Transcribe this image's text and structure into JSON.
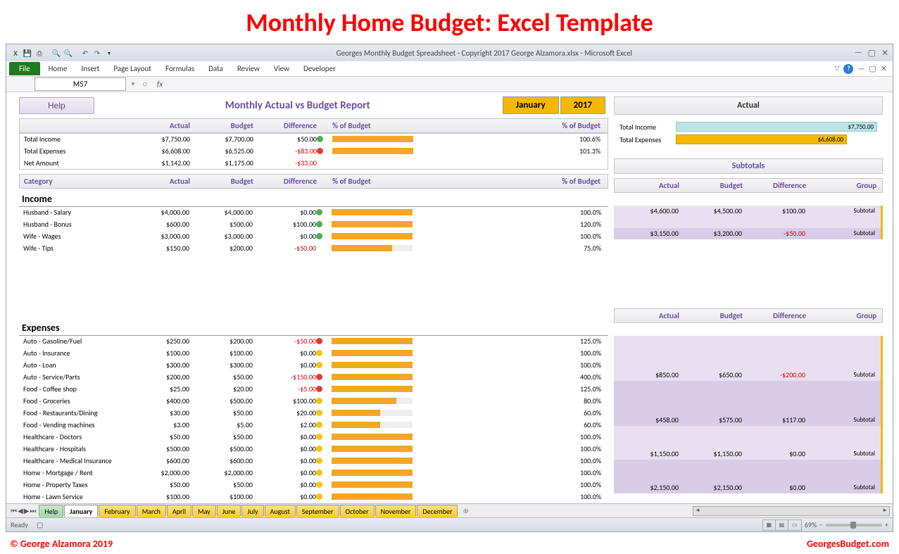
{
  "banner": "Monthly Home Budget: Excel Template",
  "window": {
    "title": "Georges Monthly Budget Spreadsheet - Copyright 2017 George Alzamora.xlsx  -  Microsoft Excel",
    "file_tab": "File",
    "tabs": [
      "Home",
      "Insert",
      "Page Layout",
      "Formulas",
      "Data",
      "Review",
      "View",
      "Developer"
    ],
    "namebox": "M57",
    "fx": "fx",
    "ready": "Ready",
    "zoom": "69%"
  },
  "report": {
    "help_btn": "Help",
    "title": "Monthly Actual vs Budget Report",
    "month": "January",
    "year": "2017",
    "headers": {
      "cat": "",
      "actual": "Actual",
      "budget": "Budget",
      "diff": "Difference",
      "pct1": "% of Budget",
      "pct2": "% of Budget"
    },
    "totals": [
      {
        "cat": "Total Income",
        "act": "$7,750.00",
        "bud": "$7,700.00",
        "diff": "$50.00",
        "neg": false,
        "ind": "g",
        "bar": 100,
        "pct": "100.6%"
      },
      {
        "cat": "Total Expenses",
        "act": "$6,608.00",
        "bud": "$6,525.00",
        "diff": "-$83.00",
        "neg": true,
        "ind": "r",
        "bar": 100,
        "pct": "101.3%"
      },
      {
        "cat": "Net Amount",
        "act": "$1,142.00",
        "bud": "$1,175.00",
        "diff": "-$33.00",
        "neg": true,
        "ind": "",
        "bar": 0,
        "pct": ""
      }
    ],
    "cat_header": "Category",
    "income_label": "Income",
    "income": [
      {
        "cat": "Husband - Salary",
        "act": "$4,000.00",
        "bud": "$4,000.00",
        "diff": "$0.00",
        "neg": false,
        "ind": "g",
        "bar": 100,
        "pct": "100.0%"
      },
      {
        "cat": "Husband - Bonus",
        "act": "$600.00",
        "bud": "$500.00",
        "diff": "$100.00",
        "neg": false,
        "ind": "g",
        "bar": 100,
        "pct": "120.0%"
      },
      {
        "cat": "Wife - Wages",
        "act": "$3,000.00",
        "bud": "$3,000.00",
        "diff": "$0.00",
        "neg": false,
        "ind": "g",
        "bar": 100,
        "pct": "100.0%"
      },
      {
        "cat": "Wife - Tips",
        "act": "$150.00",
        "bud": "$200.00",
        "diff": "-$50.00",
        "neg": true,
        "ind": "",
        "bar": 75,
        "pct": "75.0%"
      }
    ],
    "expenses_label": "Expenses",
    "expenses": [
      {
        "cat": "Auto - Gasoline/Fuel",
        "act": "$250.00",
        "bud": "$200.00",
        "diff": "-$50.00",
        "neg": true,
        "ind": "r",
        "bar": 100,
        "pct": "125.0%"
      },
      {
        "cat": "Auto - Insurance",
        "act": "$100.00",
        "bud": "$100.00",
        "diff": "$0.00",
        "neg": false,
        "ind": "y",
        "bar": 100,
        "pct": "100.0%"
      },
      {
        "cat": "Auto - Loan",
        "act": "$300.00",
        "bud": "$300.00",
        "diff": "$0.00",
        "neg": false,
        "ind": "y",
        "bar": 100,
        "pct": "100.0%"
      },
      {
        "cat": "Auto - Service/Parts",
        "act": "$200.00",
        "bud": "$50.00",
        "diff": "-$150.00",
        "neg": true,
        "ind": "r",
        "bar": 100,
        "pct": "400.0%"
      },
      {
        "cat": "Food - Coffee shop",
        "act": "$25.00",
        "bud": "$20.00",
        "diff": "-$5.00",
        "neg": true,
        "ind": "r",
        "bar": 100,
        "pct": "125.0%"
      },
      {
        "cat": "Food - Groceries",
        "act": "$400.00",
        "bud": "$500.00",
        "diff": "$100.00",
        "neg": false,
        "ind": "y",
        "bar": 80,
        "pct": "80.0%"
      },
      {
        "cat": "Food - Restaurants/Dining",
        "act": "$30.00",
        "bud": "$50.00",
        "diff": "$20.00",
        "neg": false,
        "ind": "y",
        "bar": 60,
        "pct": "60.0%"
      },
      {
        "cat": "Food - Vending machines",
        "act": "$3.00",
        "bud": "$5.00",
        "diff": "$2.00",
        "neg": false,
        "ind": "y",
        "bar": 60,
        "pct": "60.0%"
      },
      {
        "cat": "Healthcare - Doctors",
        "act": "$50.00",
        "bud": "$50.00",
        "diff": "$0.00",
        "neg": false,
        "ind": "y",
        "bar": 100,
        "pct": "100.0%"
      },
      {
        "cat": "Healthcare - Hospitals",
        "act": "$500.00",
        "bud": "$500.00",
        "diff": "$0.00",
        "neg": false,
        "ind": "y",
        "bar": 100,
        "pct": "100.0%"
      },
      {
        "cat": "Healthcare - Medical Insurance",
        "act": "$600.00",
        "bud": "$600.00",
        "diff": "$0.00",
        "neg": false,
        "ind": "y",
        "bar": 100,
        "pct": "100.0%"
      },
      {
        "cat": "Home - Mortgage / Rent",
        "act": "$2,000.00",
        "bud": "$2,000.00",
        "diff": "$0.00",
        "neg": false,
        "ind": "y",
        "bar": 100,
        "pct": "100.0%"
      },
      {
        "cat": "Home - Property Taxes",
        "act": "$50.00",
        "bud": "$50.00",
        "diff": "$0.00",
        "neg": false,
        "ind": "y",
        "bar": 100,
        "pct": "100.0%"
      },
      {
        "cat": "Home - Lawn Service",
        "act": "$100.00",
        "bud": "$100.00",
        "diff": "$0.00",
        "neg": false,
        "ind": "y",
        "bar": 100,
        "pct": "100.0%"
      }
    ]
  },
  "side": {
    "actual_hdr": "Actual",
    "ti_label": "Total Income",
    "ti_val": "$7,750.00",
    "te_label": "Total Expenses",
    "te_val": "$6,608.00",
    "te_bar_pct": 85,
    "sub_title": "Subtotals",
    "sub_headers": {
      "actual": "Actual",
      "budget": "Budget",
      "diff": "Difference",
      "group": "Group"
    },
    "income_subs": [
      {
        "act": "$4,600.00",
        "bud": "$4,500.00",
        "diff": "$100.00",
        "neg": false,
        "grp": "Subtotal",
        "shade": 1,
        "blank": false
      },
      {
        "act": "",
        "bud": "",
        "diff": "",
        "neg": false,
        "grp": "",
        "shade": 1,
        "blank": true
      },
      {
        "act": "$3,150.00",
        "bud": "$3,200.00",
        "diff": "-$50.00",
        "neg": true,
        "grp": "Subtotal",
        "shade": 2,
        "blank": false
      }
    ],
    "expense_subs": [
      {
        "blank": true,
        "shade": 1
      },
      {
        "blank": true,
        "shade": 1
      },
      {
        "blank": true,
        "shade": 1
      },
      {
        "act": "$850.00",
        "bud": "$650.00",
        "diff": "-$200.00",
        "neg": true,
        "grp": "Subtotal",
        "shade": 1,
        "blank": false
      },
      {
        "blank": true,
        "shade": 2
      },
      {
        "blank": true,
        "shade": 2
      },
      {
        "blank": true,
        "shade": 2
      },
      {
        "act": "$458.00",
        "bud": "$575.00",
        "diff": "$117.00",
        "neg": false,
        "grp": "Subtotal",
        "shade": 2,
        "blank": false
      },
      {
        "blank": true,
        "shade": 1
      },
      {
        "blank": true,
        "shade": 1
      },
      {
        "act": "$1,150.00",
        "bud": "$1,150.00",
        "diff": "$0.00",
        "neg": false,
        "grp": "Subtotal",
        "shade": 1,
        "blank": false
      },
      {
        "blank": true,
        "shade": 2
      },
      {
        "blank": true,
        "shade": 2
      },
      {
        "act": "$2,150.00",
        "bud": "$2,150.00",
        "diff": "$0.00",
        "neg": false,
        "grp": "Subtotal",
        "shade": 2,
        "blank": false
      }
    ]
  },
  "sheets": {
    "help": "Help",
    "active": "January",
    "others": [
      "February",
      "March",
      "April",
      "May",
      "June",
      "July",
      "August",
      "September",
      "October",
      "November",
      "December"
    ]
  },
  "footer": {
    "left": "© George Alzamora 2019",
    "right": "GeorgesBudget.com"
  },
  "colors": {
    "accent": "#6b4e9e",
    "bar": "#f5a623",
    "month_bg": "#f5b800",
    "green": "#4caf50",
    "yellow": "#ffc107",
    "red": "#e53935",
    "inc_bar": "#bce4e8",
    "shade1": "#e8e0f0",
    "shade2": "#d8cce8"
  }
}
